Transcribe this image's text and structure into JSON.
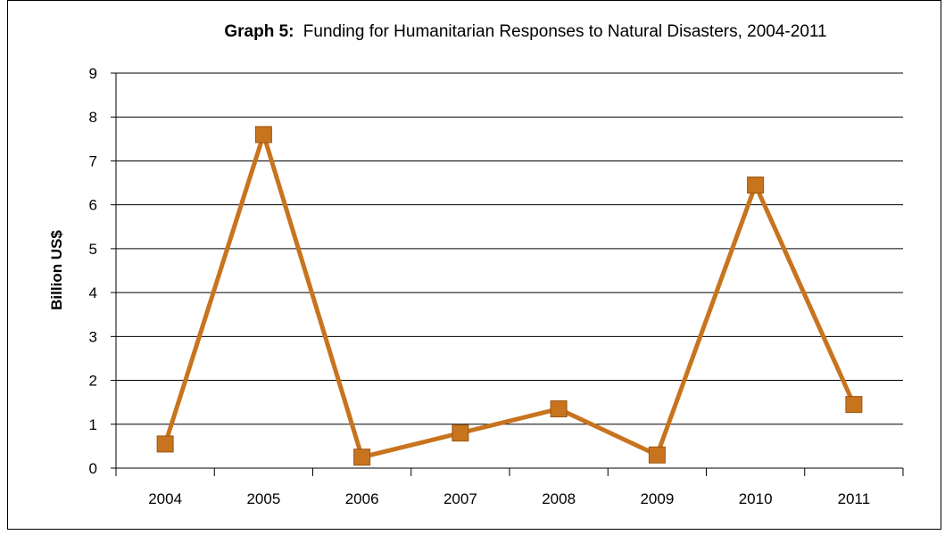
{
  "chart_data": {
    "type": "line",
    "title_prefix": "Graph 5:",
    "title": "Funding for Humanitarian Responses to Natural Disasters, 2004-2011",
    "xlabel": "",
    "ylabel": "Billion US$",
    "categories": [
      "2004",
      "2005",
      "2006",
      "2007",
      "2008",
      "2009",
      "2010",
      "2011"
    ],
    "series": [
      {
        "values": [
          0.55,
          7.6,
          0.25,
          0.8,
          1.35,
          0.3,
          6.45,
          1.45
        ],
        "color": "#C8741E",
        "marker": "square"
      }
    ],
    "ylim": [
      0,
      9
    ],
    "yticks": [
      0,
      1,
      2,
      3,
      4,
      5,
      6,
      7,
      8,
      9
    ],
    "grid": true,
    "legend": "none"
  }
}
